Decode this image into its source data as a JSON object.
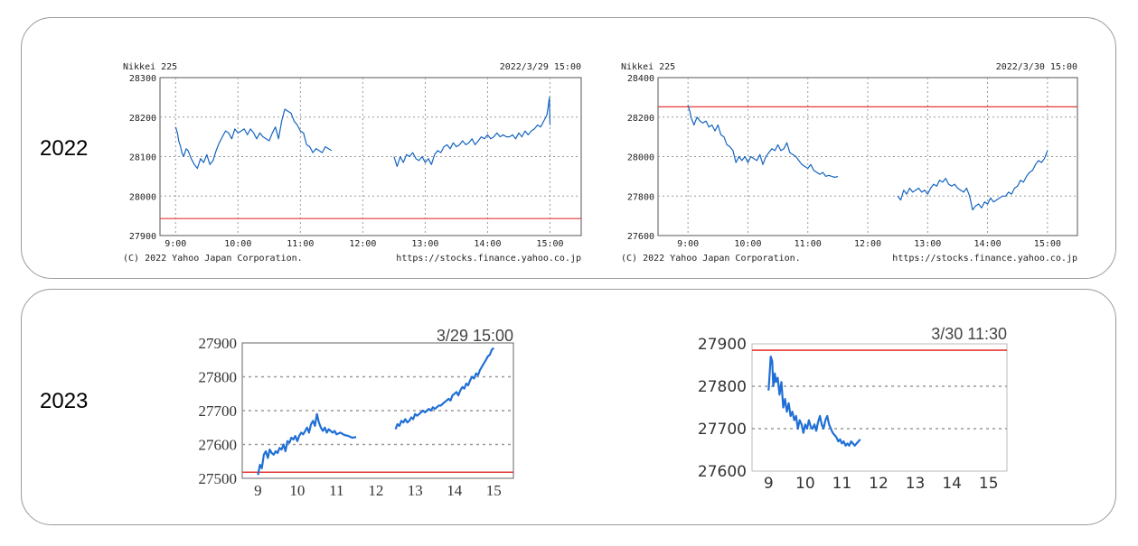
{
  "colors": {
    "price_line": "#1565c0",
    "price_line_2023": "#1f6fd6",
    "reference_line": "#e53935",
    "grid": "#999999"
  },
  "rows": [
    {
      "year_label": "2022"
    },
    {
      "year_label": "2023"
    }
  ],
  "chart_data": [
    {
      "type": "line",
      "title": "Nikkei 225",
      "timestamp": "2022/3/29 15:00",
      "footer_left": "(C) 2022 Yahoo Japan Corporation.",
      "footer_right": "https://stocks.finance.yahoo.co.jp",
      "x_ticks": [
        "9:00",
        "10:00",
        "11:00",
        "12:00",
        "13:00",
        "14:00",
        "15:00"
      ],
      "y_ticks": [
        "28300",
        "28200",
        "28100",
        "28000",
        "27900"
      ],
      "ylim": [
        27900,
        28300
      ],
      "xlim": [
        8.75,
        15.5
      ],
      "grid": true,
      "reference_line": 27943,
      "series": [
        {
          "x": [
            9.0,
            9.03,
            9.05,
            9.08,
            9.1,
            9.13,
            9.17,
            9.2,
            9.25,
            9.3,
            9.35,
            9.4,
            9.45,
            9.5,
            9.55,
            9.6,
            9.65,
            9.7,
            9.75,
            9.8,
            9.85,
            9.9,
            9.95,
            10.0,
            10.05,
            10.1,
            10.15,
            10.2,
            10.25,
            10.3,
            10.35,
            10.4,
            10.45,
            10.5,
            10.55,
            10.6,
            10.65,
            10.7,
            10.75,
            10.8,
            10.85,
            10.9,
            10.95,
            11.0,
            11.05,
            11.1,
            11.15,
            11.2,
            11.25,
            11.3,
            11.35,
            11.4,
            11.45,
            11.5
          ],
          "y": [
            28175,
            28160,
            28140,
            28125,
            28110,
            28100,
            28120,
            28115,
            28095,
            28080,
            28070,
            28095,
            28085,
            28105,
            28080,
            28090,
            28115,
            28135,
            28150,
            28165,
            28160,
            28145,
            28170,
            28160,
            28165,
            28170,
            28155,
            28170,
            28160,
            28145,
            28160,
            28150,
            28145,
            28140,
            28160,
            28175,
            28145,
            28190,
            28220,
            28215,
            28210,
            28190,
            28180,
            28165,
            28160,
            28130,
            28125,
            28110,
            28120,
            28115,
            28110,
            28125,
            28120,
            28115
          ]
        },
        {
          "x": [
            12.5,
            12.55,
            12.6,
            12.65,
            12.7,
            12.75,
            12.8,
            12.85,
            12.9,
            12.95,
            13.0,
            13.05,
            13.1,
            13.15,
            13.2,
            13.25,
            13.3,
            13.35,
            13.4,
            13.45,
            13.5,
            13.55,
            13.6,
            13.65,
            13.7,
            13.75,
            13.8,
            13.85,
            13.9,
            13.95,
            14.0,
            14.05,
            14.1,
            14.15,
            14.2,
            14.25,
            14.3,
            14.35,
            14.4,
            14.45,
            14.5,
            14.55,
            14.6,
            14.65,
            14.7,
            14.75,
            14.8,
            14.85,
            14.9,
            14.95,
            14.97,
            14.99,
            15.0
          ],
          "y": [
            28100,
            28075,
            28100,
            28085,
            28105,
            28100,
            28110,
            28095,
            28090,
            28100,
            28085,
            28095,
            28080,
            28105,
            28115,
            28110,
            28125,
            28130,
            28120,
            28135,
            28125,
            28130,
            28140,
            28130,
            28135,
            28145,
            28130,
            28140,
            28150,
            28145,
            28155,
            28145,
            28150,
            28160,
            28150,
            28155,
            28150,
            28150,
            28155,
            28145,
            28160,
            28150,
            28165,
            28155,
            28165,
            28170,
            28180,
            28175,
            28190,
            28205,
            28225,
            28250,
            28180
          ]
        }
      ]
    },
    {
      "type": "line",
      "title": "Nikkei 225",
      "timestamp": "2022/3/30 15:00",
      "footer_left": "(C) 2022 Yahoo Japan Corporation.",
      "footer_right": "https://stocks.finance.yahoo.co.jp",
      "x_ticks": [
        "9:00",
        "10:00",
        "11:00",
        "12:00",
        "13:00",
        "14:00",
        "15:00"
      ],
      "y_ticks": [
        "28400",
        "28200",
        "28000",
        "27800",
        "27600"
      ],
      "ylim": [
        27600,
        28400
      ],
      "xlim": [
        8.5,
        15.5
      ],
      "grid": true,
      "reference_line": 28252,
      "series": [
        {
          "x": [
            9.0,
            9.03,
            9.06,
            9.1,
            9.15,
            9.2,
            9.25,
            9.3,
            9.35,
            9.4,
            9.45,
            9.5,
            9.55,
            9.6,
            9.65,
            9.7,
            9.75,
            9.8,
            9.85,
            9.9,
            9.95,
            10.0,
            10.05,
            10.1,
            10.15,
            10.2,
            10.25,
            10.3,
            10.35,
            10.4,
            10.45,
            10.5,
            10.55,
            10.6,
            10.65,
            10.7,
            10.75,
            10.8,
            10.85,
            10.9,
            10.95,
            11.0,
            11.05,
            11.1,
            11.15,
            11.2,
            11.25,
            11.3,
            11.35,
            11.4,
            11.45,
            11.5
          ],
          "y": [
            28260,
            28230,
            28190,
            28160,
            28200,
            28180,
            28170,
            28180,
            28150,
            28160,
            28130,
            28160,
            28110,
            28100,
            28060,
            28050,
            28030,
            27970,
            28000,
            27980,
            28000,
            27970,
            28000,
            27990,
            27980,
            28010,
            27960,
            28000,
            28020,
            28040,
            28030,
            28060,
            28030,
            28040,
            28070,
            28020,
            28010,
            28000,
            27980,
            27960,
            27950,
            27940,
            27960,
            27930,
            27920,
            27910,
            27920,
            27900,
            27905,
            27900,
            27895,
            27900
          ]
        },
        {
          "x": [
            12.5,
            12.55,
            12.6,
            12.65,
            12.7,
            12.75,
            12.8,
            12.85,
            12.9,
            12.95,
            13.0,
            13.05,
            13.1,
            13.15,
            13.2,
            13.25,
            13.3,
            13.35,
            13.4,
            13.45,
            13.5,
            13.55,
            13.6,
            13.65,
            13.7,
            13.75,
            13.8,
            13.85,
            13.9,
            13.95,
            14.0,
            14.05,
            14.1,
            14.15,
            14.2,
            14.25,
            14.3,
            14.35,
            14.4,
            14.45,
            14.5,
            14.55,
            14.6,
            14.65,
            14.7,
            14.75,
            14.8,
            14.85,
            14.9,
            14.95,
            15.0
          ],
          "y": [
            27800,
            27780,
            27830,
            27810,
            27840,
            27820,
            27830,
            27840,
            27820,
            27830,
            27810,
            27840,
            27860,
            27850,
            27880,
            27870,
            27890,
            27860,
            27850,
            27860,
            27840,
            27830,
            27820,
            27840,
            27800,
            27730,
            27750,
            27760,
            27740,
            27770,
            27760,
            27790,
            27770,
            27780,
            27790,
            27800,
            27800,
            27820,
            27810,
            27840,
            27850,
            27880,
            27870,
            27900,
            27920,
            27930,
            27960,
            27980,
            27970,
            27990,
            28030
          ]
        }
      ]
    },
    {
      "type": "line",
      "title": "",
      "timestamp": "3/29 15:00",
      "x_ticks": [
        "9",
        "10",
        "11",
        "12",
        "13",
        "14",
        "15"
      ],
      "y_ticks": [
        "27900",
        "27800",
        "27700",
        "27600",
        "27500"
      ],
      "ylim": [
        27500,
        27900
      ],
      "xlim": [
        8.6,
        15.5
      ],
      "grid": true,
      "reference_line": 27518,
      "series": [
        {
          "x": [
            9.0,
            9.05,
            9.1,
            9.15,
            9.2,
            9.25,
            9.3,
            9.35,
            9.4,
            9.45,
            9.5,
            9.55,
            9.6,
            9.65,
            9.7,
            9.75,
            9.8,
            9.85,
            9.9,
            9.95,
            10.0,
            10.05,
            10.1,
            10.15,
            10.2,
            10.25,
            10.3,
            10.35,
            10.4,
            10.45,
            10.5,
            10.55,
            10.6,
            10.65,
            10.7,
            10.75,
            10.8,
            10.85,
            10.9,
            10.95,
            11.0,
            11.1,
            11.2,
            11.3,
            11.4,
            11.5
          ],
          "y": [
            27510,
            27540,
            27530,
            27570,
            27580,
            27560,
            27585,
            27575,
            27570,
            27580,
            27575,
            27590,
            27585,
            27600,
            27580,
            27610,
            27605,
            27620,
            27615,
            27625,
            27610,
            27625,
            27635,
            27630,
            27640,
            27650,
            27635,
            27660,
            27670,
            27655,
            27690,
            27665,
            27650,
            27640,
            27650,
            27635,
            27645,
            27640,
            27635,
            27640,
            27630,
            27635,
            27628,
            27625,
            27620,
            27622
          ]
        },
        {
          "x": [
            12.5,
            12.55,
            12.6,
            12.65,
            12.7,
            12.75,
            12.8,
            12.85,
            12.9,
            12.95,
            13.0,
            13.05,
            13.1,
            13.15,
            13.2,
            13.25,
            13.3,
            13.35,
            13.4,
            13.45,
            13.5,
            13.55,
            13.6,
            13.65,
            13.7,
            13.75,
            13.8,
            13.85,
            13.9,
            13.95,
            14.0,
            14.05,
            14.1,
            14.15,
            14.2,
            14.25,
            14.3,
            14.35,
            14.4,
            14.45,
            14.5,
            14.55,
            14.6,
            14.65,
            14.7,
            14.75,
            14.8,
            14.85,
            14.9,
            14.95,
            15.0
          ],
          "y": [
            27645,
            27660,
            27655,
            27670,
            27665,
            27675,
            27665,
            27670,
            27680,
            27675,
            27690,
            27685,
            27690,
            27695,
            27700,
            27695,
            27700,
            27705,
            27700,
            27710,
            27705,
            27710,
            27715,
            27715,
            27720,
            27725,
            27730,
            27735,
            27730,
            27745,
            27750,
            27755,
            27745,
            27760,
            27770,
            27765,
            27780,
            27775,
            27790,
            27800,
            27795,
            27810,
            27805,
            27820,
            27830,
            27840,
            27850,
            27860,
            27865,
            27880,
            27885
          ]
        }
      ]
    },
    {
      "type": "line",
      "title": "",
      "timestamp": "3/30 11:30",
      "x_ticks": [
        "9",
        "10",
        "11",
        "12",
        "13",
        "14",
        "15"
      ],
      "y_ticks": [
        "27900",
        "27800",
        "27700",
        "27600"
      ],
      "ylim": [
        27600,
        27900
      ],
      "xlim": [
        8.55,
        15.5
      ],
      "grid": true,
      "reference_line": 27885,
      "series": [
        {
          "x": [
            9.0,
            9.03,
            9.06,
            9.1,
            9.13,
            9.17,
            9.2,
            9.25,
            9.3,
            9.35,
            9.4,
            9.45,
            9.5,
            9.55,
            9.6,
            9.65,
            9.7,
            9.75,
            9.8,
            9.85,
            9.9,
            9.95,
            10.0,
            10.05,
            10.1,
            10.15,
            10.2,
            10.25,
            10.3,
            10.35,
            10.4,
            10.45,
            10.5,
            10.55,
            10.6,
            10.65,
            10.7,
            10.75,
            10.8,
            10.85,
            10.9,
            10.95,
            11.0,
            11.05,
            11.1,
            11.15,
            11.2,
            11.25,
            11.3,
            11.35,
            11.4,
            11.45,
            11.5
          ],
          "y": [
            27790,
            27830,
            27870,
            27860,
            27800,
            27830,
            27810,
            27820,
            27780,
            27810,
            27750,
            27770,
            27740,
            27760,
            27730,
            27740,
            27720,
            27730,
            27700,
            27720,
            27710,
            27690,
            27710,
            27700,
            27720,
            27705,
            27700,
            27710,
            27695,
            27715,
            27730,
            27710,
            27700,
            27720,
            27730,
            27710,
            27700,
            27690,
            27685,
            27680,
            27670,
            27675,
            27665,
            27670,
            27660,
            27665,
            27660,
            27670,
            27665,
            27660,
            27665,
            27670,
            27675
          ]
        }
      ]
    }
  ]
}
